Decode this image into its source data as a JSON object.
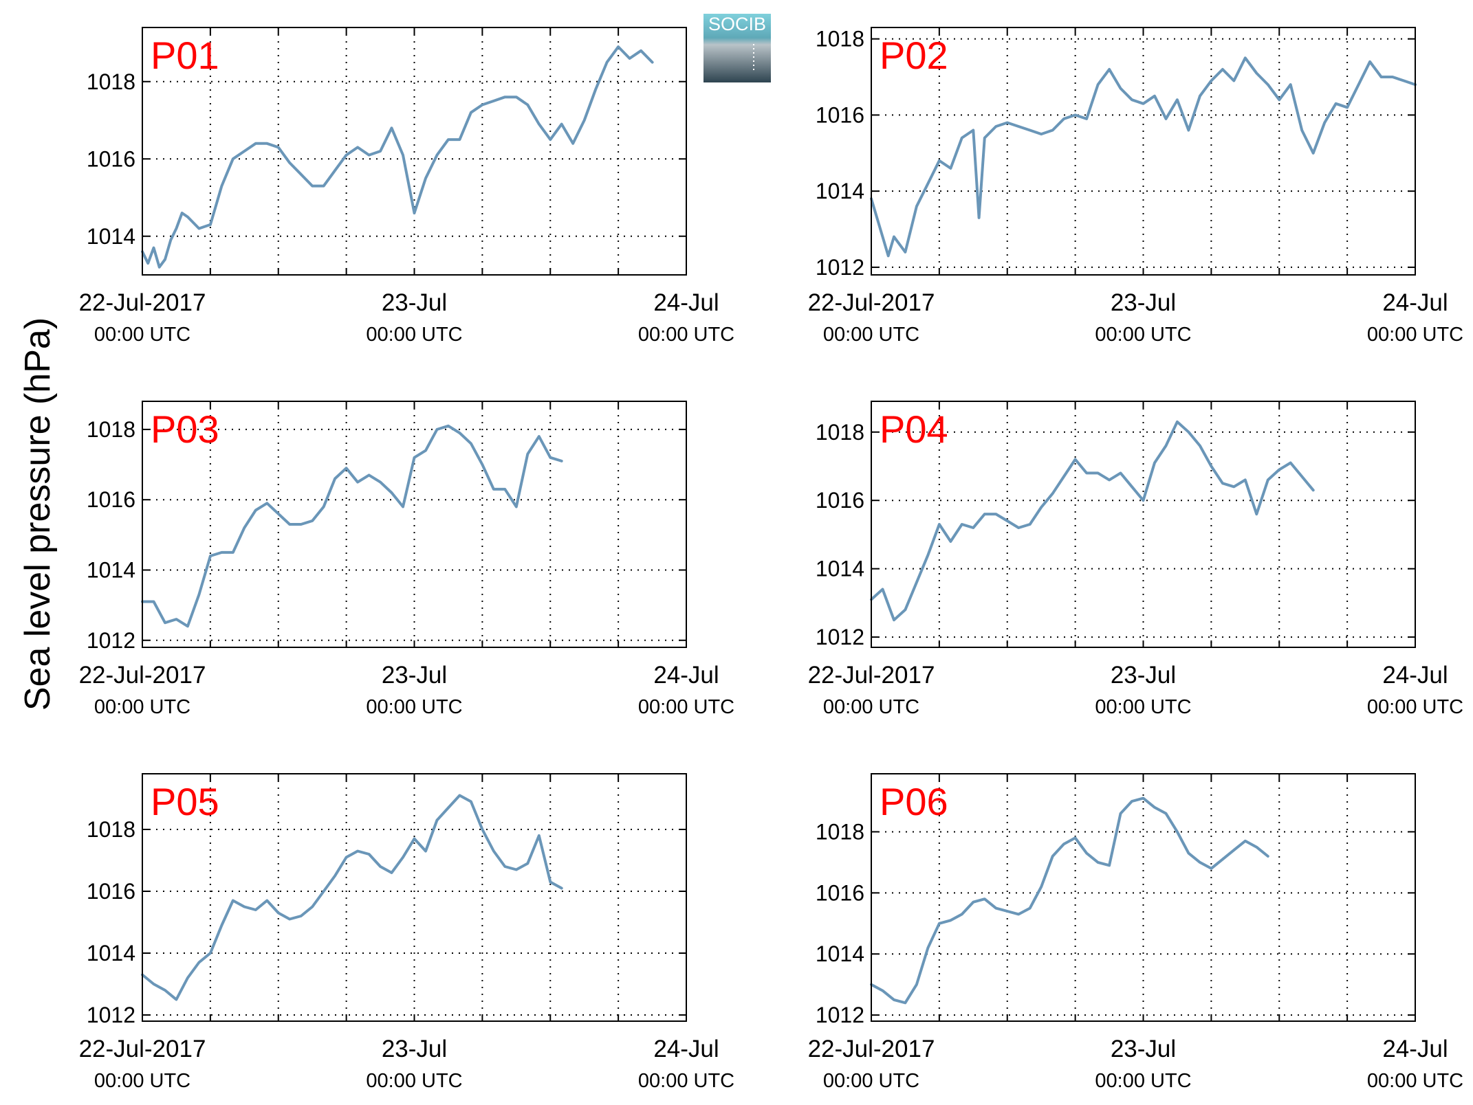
{
  "figure": {
    "ylabel": "Sea level pressure (hPa)",
    "logo_text": "SOCIB"
  },
  "colors": {
    "line": "#6a96b8",
    "station_label": "#ff0000",
    "grid": "#000000",
    "logo_top": "#7fd0dc",
    "logo_bottom": "#2e4450"
  },
  "chart_data": [
    {
      "type": "line",
      "label": "P01",
      "x_range": [
        "22-Jul-2017 00:00 UTC",
        "24-Jul-2017 00:00 UTC"
      ],
      "x_ticks": [
        {
          "line1": "22-Jul-2017",
          "line2": "00:00 UTC"
        },
        {
          "line1": "23-Jul",
          "line2": "00:00 UTC"
        },
        {
          "line1": "24-Jul",
          "line2": "00:00 UTC"
        }
      ],
      "ylim": [
        1013,
        1019.4
      ],
      "yticks": [
        1014,
        1016,
        1018
      ],
      "grid": true,
      "points": [
        [
          0,
          1013.6
        ],
        [
          0.5,
          1013.3
        ],
        [
          1,
          1013.7
        ],
        [
          1.5,
          1013.2
        ],
        [
          2,
          1013.4
        ],
        [
          2.5,
          1013.9
        ],
        [
          3,
          1014.2
        ],
        [
          3.5,
          1014.6
        ],
        [
          4,
          1014.5
        ],
        [
          5,
          1014.2
        ],
        [
          6,
          1014.3
        ],
        [
          7,
          1015.3
        ],
        [
          8,
          1016.0
        ],
        [
          9,
          1016.2
        ],
        [
          10,
          1016.4
        ],
        [
          11,
          1016.4
        ],
        [
          12,
          1016.3
        ],
        [
          13,
          1015.9
        ],
        [
          14,
          1015.6
        ],
        [
          15,
          1015.3
        ],
        [
          16,
          1015.3
        ],
        [
          17,
          1015.7
        ],
        [
          18,
          1016.1
        ],
        [
          19,
          1016.3
        ],
        [
          20,
          1016.1
        ],
        [
          21,
          1016.2
        ],
        [
          22,
          1016.8
        ],
        [
          23,
          1016.1
        ],
        [
          24,
          1014.6
        ],
        [
          25,
          1015.5
        ],
        [
          26,
          1016.1
        ],
        [
          27,
          1016.5
        ],
        [
          28,
          1016.5
        ],
        [
          29,
          1017.2
        ],
        [
          30,
          1017.4
        ],
        [
          31,
          1017.5
        ],
        [
          32,
          1017.6
        ],
        [
          33,
          1017.6
        ],
        [
          34,
          1017.4
        ],
        [
          35,
          1016.9
        ],
        [
          36,
          1016.5
        ],
        [
          37,
          1016.9
        ],
        [
          38,
          1016.4
        ],
        [
          39,
          1017.0
        ],
        [
          40,
          1017.8
        ],
        [
          41,
          1018.5
        ],
        [
          42,
          1018.9
        ],
        [
          43,
          1018.6
        ],
        [
          44,
          1018.8
        ],
        [
          45,
          1018.5
        ]
      ]
    },
    {
      "type": "line",
      "label": "P02",
      "x_range": [
        "22-Jul-2017 00:00 UTC",
        "24-Jul-2017 00:00 UTC"
      ],
      "x_ticks": [
        {
          "line1": "22-Jul-2017",
          "line2": "00:00 UTC"
        },
        {
          "line1": "23-Jul",
          "line2": "00:00 UTC"
        },
        {
          "line1": "24-Jul",
          "line2": "00:00 UTC"
        }
      ],
      "ylim": [
        1011.8,
        1018.3
      ],
      "yticks": [
        1012,
        1014,
        1016,
        1018
      ],
      "grid": true,
      "points": [
        [
          0,
          1013.8
        ],
        [
          1,
          1012.8
        ],
        [
          1.5,
          1012.3
        ],
        [
          2,
          1012.8
        ],
        [
          3,
          1012.4
        ],
        [
          4,
          1013.6
        ],
        [
          5,
          1014.2
        ],
        [
          6,
          1014.8
        ],
        [
          7,
          1014.6
        ],
        [
          8,
          1015.4
        ],
        [
          9,
          1015.6
        ],
        [
          9.5,
          1013.3
        ],
        [
          10,
          1015.4
        ],
        [
          11,
          1015.7
        ],
        [
          12,
          1015.8
        ],
        [
          13,
          1015.7
        ],
        [
          14,
          1015.6
        ],
        [
          15,
          1015.5
        ],
        [
          16,
          1015.6
        ],
        [
          17,
          1015.9
        ],
        [
          18,
          1016.0
        ],
        [
          19,
          1015.9
        ],
        [
          20,
          1016.8
        ],
        [
          21,
          1017.2
        ],
        [
          22,
          1016.7
        ],
        [
          23,
          1016.4
        ],
        [
          24,
          1016.3
        ],
        [
          25,
          1016.5
        ],
        [
          26,
          1015.9
        ],
        [
          27,
          1016.4
        ],
        [
          28,
          1015.6
        ],
        [
          29,
          1016.5
        ],
        [
          30,
          1016.9
        ],
        [
          31,
          1017.2
        ],
        [
          32,
          1016.9
        ],
        [
          33,
          1017.5
        ],
        [
          34,
          1017.1
        ],
        [
          35,
          1016.8
        ],
        [
          36,
          1016.4
        ],
        [
          37,
          1016.8
        ],
        [
          38,
          1015.6
        ],
        [
          39,
          1015.0
        ],
        [
          40,
          1015.8
        ],
        [
          41,
          1016.3
        ],
        [
          42,
          1016.2
        ],
        [
          43,
          1016.8
        ],
        [
          44,
          1017.4
        ],
        [
          45,
          1017.0
        ],
        [
          46,
          1017.0
        ],
        [
          47,
          1016.9
        ],
        [
          48,
          1016.8
        ]
      ]
    },
    {
      "type": "line",
      "label": "P03",
      "x_range": [
        "22-Jul-2017 00:00 UTC",
        "24-Jul-2017 00:00 UTC"
      ],
      "x_ticks": [
        {
          "line1": "22-Jul-2017",
          "line2": "00:00 UTC"
        },
        {
          "line1": "23-Jul",
          "line2": "00:00 UTC"
        },
        {
          "line1": "24-Jul",
          "line2": "00:00 UTC"
        }
      ],
      "ylim": [
        1011.8,
        1018.8
      ],
      "yticks": [
        1012,
        1014,
        1016,
        1018
      ],
      "grid": true,
      "points": [
        [
          0,
          1013.1
        ],
        [
          1,
          1013.1
        ],
        [
          2,
          1012.5
        ],
        [
          3,
          1012.6
        ],
        [
          4,
          1012.4
        ],
        [
          5,
          1013.3
        ],
        [
          6,
          1014.4
        ],
        [
          7,
          1014.5
        ],
        [
          8,
          1014.5
        ],
        [
          9,
          1015.2
        ],
        [
          10,
          1015.7
        ],
        [
          11,
          1015.9
        ],
        [
          12,
          1015.6
        ],
        [
          13,
          1015.3
        ],
        [
          14,
          1015.3
        ],
        [
          15,
          1015.4
        ],
        [
          16,
          1015.8
        ],
        [
          17,
          1016.6
        ],
        [
          18,
          1016.9
        ],
        [
          19,
          1016.5
        ],
        [
          20,
          1016.7
        ],
        [
          21,
          1016.5
        ],
        [
          22,
          1016.2
        ],
        [
          23,
          1015.8
        ],
        [
          24,
          1017.2
        ],
        [
          25,
          1017.4
        ],
        [
          26,
          1018.0
        ],
        [
          27,
          1018.1
        ],
        [
          28,
          1017.9
        ],
        [
          29,
          1017.6
        ],
        [
          30,
          1017.0
        ],
        [
          31,
          1016.3
        ],
        [
          32,
          1016.3
        ],
        [
          33,
          1015.8
        ],
        [
          34,
          1017.3
        ],
        [
          35,
          1017.8
        ],
        [
          36,
          1017.2
        ],
        [
          37,
          1017.1
        ]
      ]
    },
    {
      "type": "line",
      "label": "P04",
      "x_range": [
        "22-Jul-2017 00:00 UTC",
        "24-Jul-2017 00:00 UTC"
      ],
      "x_ticks": [
        {
          "line1": "22-Jul-2017",
          "line2": "00:00 UTC"
        },
        {
          "line1": "23-Jul",
          "line2": "00:00 UTC"
        },
        {
          "line1": "24-Jul",
          "line2": "00:00 UTC"
        }
      ],
      "ylim": [
        1011.7,
        1018.9
      ],
      "yticks": [
        1012,
        1014,
        1016,
        1018
      ],
      "grid": true,
      "points": [
        [
          0,
          1013.1
        ],
        [
          1,
          1013.4
        ],
        [
          2,
          1012.5
        ],
        [
          3,
          1012.8
        ],
        [
          4,
          1013.6
        ],
        [
          5,
          1014.4
        ],
        [
          6,
          1015.3
        ],
        [
          7,
          1014.8
        ],
        [
          8,
          1015.3
        ],
        [
          9,
          1015.2
        ],
        [
          10,
          1015.6
        ],
        [
          11,
          1015.6
        ],
        [
          12,
          1015.4
        ],
        [
          13,
          1015.2
        ],
        [
          14,
          1015.3
        ],
        [
          15,
          1015.8
        ],
        [
          16,
          1016.2
        ],
        [
          17,
          1016.7
        ],
        [
          18,
          1017.2
        ],
        [
          19,
          1016.8
        ],
        [
          20,
          1016.8
        ],
        [
          21,
          1016.6
        ],
        [
          22,
          1016.8
        ],
        [
          23,
          1016.4
        ],
        [
          24,
          1016.0
        ],
        [
          25,
          1017.1
        ],
        [
          26,
          1017.6
        ],
        [
          27,
          1018.3
        ],
        [
          28,
          1018.0
        ],
        [
          29,
          1017.6
        ],
        [
          30,
          1017.0
        ],
        [
          31,
          1016.5
        ],
        [
          32,
          1016.4
        ],
        [
          33,
          1016.6
        ],
        [
          34,
          1015.6
        ],
        [
          35,
          1016.6
        ],
        [
          36,
          1016.9
        ],
        [
          37,
          1017.1
        ],
        [
          38,
          1016.7
        ],
        [
          39,
          1016.3
        ]
      ]
    },
    {
      "type": "line",
      "label": "P05",
      "x_range": [
        "22-Jul-2017 00:00 UTC",
        "24-Jul-2017 00:00 UTC"
      ],
      "x_ticks": [
        {
          "line1": "22-Jul-2017",
          "line2": "00:00 UTC"
        },
        {
          "line1": "23-Jul",
          "line2": "00:00 UTC"
        },
        {
          "line1": "24-Jul",
          "line2": "00:00 UTC"
        }
      ],
      "ylim": [
        1011.8,
        1019.8
      ],
      "yticks": [
        1012,
        1014,
        1016,
        1018
      ],
      "grid": true,
      "points": [
        [
          0,
          1013.3
        ],
        [
          1,
          1013.0
        ],
        [
          2,
          1012.8
        ],
        [
          3,
          1012.5
        ],
        [
          4,
          1013.2
        ],
        [
          5,
          1013.7
        ],
        [
          6,
          1014.0
        ],
        [
          7,
          1014.9
        ],
        [
          8,
          1015.7
        ],
        [
          9,
          1015.5
        ],
        [
          10,
          1015.4
        ],
        [
          11,
          1015.7
        ],
        [
          12,
          1015.3
        ],
        [
          13,
          1015.1
        ],
        [
          14,
          1015.2
        ],
        [
          15,
          1015.5
        ],
        [
          16,
          1016.0
        ],
        [
          17,
          1016.5
        ],
        [
          18,
          1017.1
        ],
        [
          19,
          1017.3
        ],
        [
          20,
          1017.2
        ],
        [
          21,
          1016.8
        ],
        [
          22,
          1016.6
        ],
        [
          23,
          1017.1
        ],
        [
          24,
          1017.7
        ],
        [
          25,
          1017.3
        ],
        [
          26,
          1018.3
        ],
        [
          27,
          1018.7
        ],
        [
          28,
          1019.1
        ],
        [
          29,
          1018.9
        ],
        [
          30,
          1018.0
        ],
        [
          31,
          1017.3
        ],
        [
          32,
          1016.8
        ],
        [
          33,
          1016.7
        ],
        [
          34,
          1016.9
        ],
        [
          35,
          1017.8
        ],
        [
          36,
          1016.3
        ],
        [
          37,
          1016.1
        ]
      ]
    },
    {
      "type": "line",
      "label": "P06",
      "x_range": [
        "22-Jul-2017 00:00 UTC",
        "24-Jul-2017 00:00 UTC"
      ],
      "x_ticks": [
        {
          "line1": "22-Jul-2017",
          "line2": "00:00 UTC"
        },
        {
          "line1": "23-Jul",
          "line2": "00:00 UTC"
        },
        {
          "line1": "24-Jul",
          "line2": "00:00 UTC"
        }
      ],
      "ylim": [
        1011.8,
        1019.9
      ],
      "yticks": [
        1012,
        1014,
        1016,
        1018
      ],
      "grid": true,
      "points": [
        [
          0,
          1013.0
        ],
        [
          1,
          1012.8
        ],
        [
          2,
          1012.5
        ],
        [
          3,
          1012.4
        ],
        [
          4,
          1013.0
        ],
        [
          5,
          1014.2
        ],
        [
          6,
          1015.0
        ],
        [
          7,
          1015.1
        ],
        [
          8,
          1015.3
        ],
        [
          9,
          1015.7
        ],
        [
          10,
          1015.8
        ],
        [
          11,
          1015.5
        ],
        [
          12,
          1015.4
        ],
        [
          13,
          1015.3
        ],
        [
          14,
          1015.5
        ],
        [
          15,
          1016.2
        ],
        [
          16,
          1017.2
        ],
        [
          17,
          1017.6
        ],
        [
          18,
          1017.8
        ],
        [
          19,
          1017.3
        ],
        [
          20,
          1017.0
        ],
        [
          21,
          1016.9
        ],
        [
          22,
          1018.6
        ],
        [
          23,
          1019.0
        ],
        [
          24,
          1019.1
        ],
        [
          25,
          1018.8
        ],
        [
          26,
          1018.6
        ],
        [
          27,
          1018.0
        ],
        [
          28,
          1017.3
        ],
        [
          29,
          1017.0
        ],
        [
          30,
          1016.8
        ],
        [
          31,
          1017.1
        ],
        [
          32,
          1017.4
        ],
        [
          33,
          1017.7
        ],
        [
          34,
          1017.5
        ],
        [
          35,
          1017.2
        ]
      ]
    }
  ]
}
